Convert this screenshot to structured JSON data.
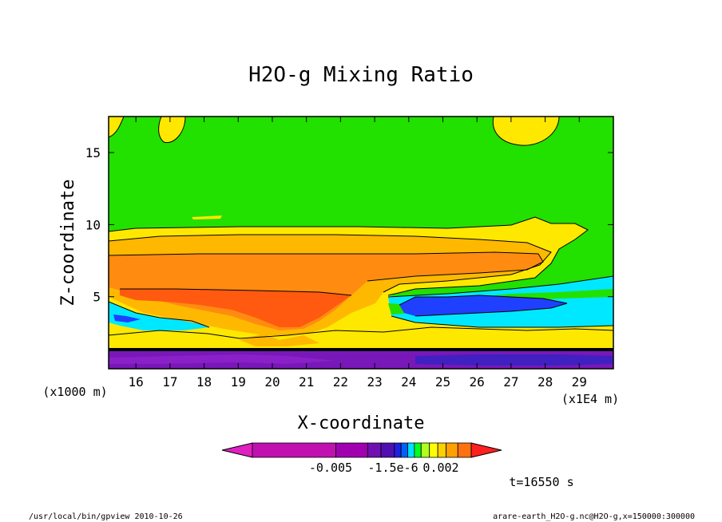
{
  "chart_data": {
    "type": "contour",
    "title": "H2O-g Mixing Ratio",
    "xlabel": "X-coordinate",
    "ylabel": "Z-coordinate",
    "x_unit_label": "(x1E4 m)",
    "y_unit_label": "(x1000 m)",
    "xlim": [
      15.2,
      30.0
    ],
    "ylim": [
      0.0,
      17.5
    ],
    "x_ticks": [
      "16",
      "17",
      "18",
      "19",
      "20",
      "21",
      "22",
      "23",
      "24",
      "25",
      "26",
      "27",
      "28",
      "29"
    ],
    "y_ticks": [
      "5",
      "10",
      "15"
    ],
    "colorbar": {
      "colors": [
        "#e020c0",
        "#c010b0",
        "#a000b0",
        "#7010b0",
        "#5010b0",
        "#2020e0",
        "#0060ff",
        "#00e0ff",
        "#00ff20",
        "#b0ff20",
        "#ffff00",
        "#ffd000",
        "#ffa000",
        "#ff7010",
        "#ff2020"
      ],
      "tick_labels": [
        "-0.005",
        "-1.5e-6",
        "0.002"
      ]
    },
    "regions": [
      {
        "name": "background-upper",
        "color": "#22e000"
      },
      {
        "name": "anvil-outer",
        "color": "#ffe800"
      },
      {
        "name": "anvil-middle",
        "color": "#ffb800"
      },
      {
        "name": "anvil-core",
        "color": "#ff8c10"
      },
      {
        "name": "plume-core",
        "color": "#ff5a10"
      },
      {
        "name": "moist-layer",
        "color": "#00e8ff"
      },
      {
        "name": "moist-tongue",
        "color": "#2040ff"
      },
      {
        "name": "surface-layer",
        "color": "#7818b8"
      }
    ]
  },
  "annotations": {
    "time": "t=16550 s",
    "footer_left": "/usr/local/bin/gpview  2010-10-26",
    "footer_right": "arare-earth_H2O-g.nc@H2O-g,x=150000:300000"
  }
}
